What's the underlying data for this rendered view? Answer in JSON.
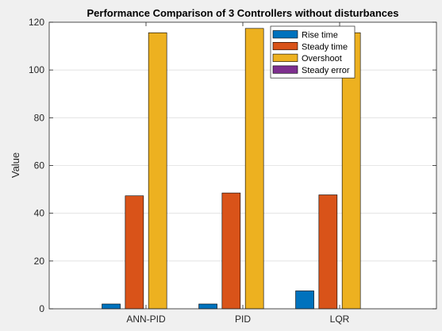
{
  "chart_data": {
    "type": "bar",
    "title": "Performance Comparison of 3 Controllers without disturbances",
    "xlabel": "",
    "ylabel": "Value",
    "categories": [
      "ANN-PID",
      "PID",
      "LQR"
    ],
    "ylim": [
      0,
      120
    ],
    "yticks": [
      0,
      20,
      40,
      60,
      80,
      100,
      120
    ],
    "grid": true,
    "legend_position": "top-right",
    "series": [
      {
        "name": "Rise time",
        "color": "#0072BD",
        "values": [
          2.0,
          2.0,
          7.5
        ]
      },
      {
        "name": "Steady time",
        "color": "#D95319",
        "values": [
          47.3,
          48.5,
          47.7
        ]
      },
      {
        "name": "Overshoot",
        "color": "#EDB120",
        "values": [
          115.6,
          117.4,
          115.6
        ]
      },
      {
        "name": "Steady error",
        "color": "#7E2F8E",
        "values": [
          0,
          0,
          0
        ]
      }
    ]
  }
}
